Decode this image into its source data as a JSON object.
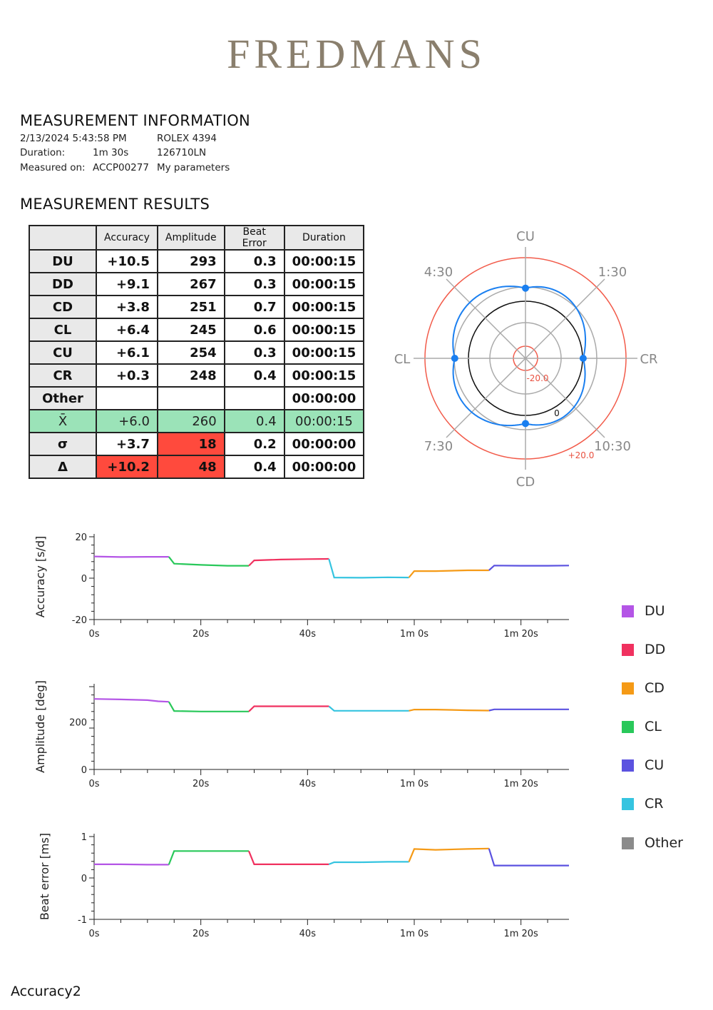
{
  "brand": "FREDMANS",
  "info": {
    "title": "MEASUREMENT INFORMATION",
    "datetime": "2/13/2024 5:43:58 PM",
    "watch": "ROLEX 4394",
    "duration_label": "Duration:",
    "duration_value": "1m 30s",
    "model": "126710LN",
    "measured_label": "Measured on:",
    "measured_value": "ACCP00277",
    "params": "My parameters"
  },
  "results": {
    "title": "MEASUREMENT RESULTS",
    "headers": [
      "",
      "Accuracy",
      "Amplitude",
      "Beat Error",
      "Duration"
    ],
    "rows": [
      {
        "label": "DU",
        "accuracy": "+10.5",
        "amplitude": "293",
        "beat_error": "0.3",
        "duration": "00:00:15"
      },
      {
        "label": "DD",
        "accuracy": "+9.1",
        "amplitude": "267",
        "beat_error": "0.3",
        "duration": "00:00:15"
      },
      {
        "label": "CD",
        "accuracy": "+3.8",
        "amplitude": "251",
        "beat_error": "0.7",
        "duration": "00:00:15"
      },
      {
        "label": "CL",
        "accuracy": "+6.4",
        "amplitude": "245",
        "beat_error": "0.6",
        "duration": "00:00:15"
      },
      {
        "label": "CU",
        "accuracy": "+6.1",
        "amplitude": "254",
        "beat_error": "0.3",
        "duration": "00:00:15"
      },
      {
        "label": "CR",
        "accuracy": "+0.3",
        "amplitude": "248",
        "beat_error": "0.4",
        "duration": "00:00:15"
      },
      {
        "label": "Other",
        "accuracy": "",
        "amplitude": "",
        "beat_error": "",
        "duration": "00:00:00"
      },
      {
        "label": "X̄",
        "accuracy": "+6.0",
        "amplitude": "260",
        "beat_error": "0.4",
        "duration": "00:00:15"
      },
      {
        "label": "σ",
        "accuracy": "+3.7",
        "amplitude": "18",
        "beat_error": "0.2",
        "duration": "00:00:00"
      },
      {
        "label": "Δ",
        "accuracy": "+10.2",
        "amplitude": "48",
        "beat_error": "0.4",
        "duration": "00:00:00"
      }
    ]
  },
  "colors": {
    "DU": "#b455e6",
    "DD": "#f0315f",
    "CD": "#f59a16",
    "CL": "#29c85a",
    "CU": "#5b52e0",
    "CR": "#35c4e0",
    "Other": "#8b8b8b",
    "mean_row": "#9be3b8",
    "alert": "#ff4a3d",
    "polar_curve": "#1a7ff0"
  },
  "chart_data": [
    {
      "type": "polar",
      "labels": {
        "CU": "CU",
        "CR": "CR",
        "CD": "CD",
        "CL": "CL",
        "d130": "1:30",
        "d430": "4:30",
        "d730": "7:30",
        "d1030": "10:30"
      },
      "r_inner_label": "-20.0",
      "r_outer_label": "+20.0",
      "r_zero_label": "0",
      "r_range": [
        -20,
        20
      ],
      "accuracy_by_position": {
        "CU": 6.1,
        "CR": 0.3,
        "CD": 3.8,
        "CL": 6.4
      }
    },
    {
      "type": "line",
      "ylabel": "Accuracy [s/d]",
      "ylim": [
        -20,
        20
      ],
      "yticks": [
        "20",
        "0",
        "-20"
      ],
      "xticks": [
        "0s",
        "20s",
        "40s",
        "1m 0s",
        "1m 20s"
      ],
      "xlim_s": [
        0,
        89
      ],
      "segments": [
        {
          "name": "DU",
          "points": [
            [
              0,
              10.5
            ],
            [
              5,
              10.2
            ],
            [
              10,
              10.3
            ],
            [
              14,
              10.3
            ]
          ]
        },
        {
          "name": "CL",
          "points": [
            [
              15,
              7
            ],
            [
              20,
              6.4
            ],
            [
              25,
              6.0
            ],
            [
              29,
              6.0
            ]
          ]
        },
        {
          "name": "DD",
          "points": [
            [
              30,
              8.6
            ],
            [
              35,
              9.0
            ],
            [
              40,
              9.2
            ],
            [
              44,
              9.3
            ]
          ]
        },
        {
          "name": "CR",
          "points": [
            [
              45,
              0.3
            ],
            [
              50,
              0.2
            ],
            [
              55,
              0.4
            ],
            [
              59,
              0.3
            ]
          ]
        },
        {
          "name": "CD",
          "points": [
            [
              60,
              3.4
            ],
            [
              64,
              3.4
            ],
            [
              70,
              3.8
            ],
            [
              74,
              3.8
            ]
          ]
        },
        {
          "name": "CU",
          "points": [
            [
              75,
              6.1
            ],
            [
              80,
              6.0
            ],
            [
              85,
              6.0
            ],
            [
              89,
              6.1
            ]
          ]
        }
      ]
    },
    {
      "type": "line",
      "ylabel": "Amplitude [deg]",
      "ylim": [
        0,
        350
      ],
      "yticks": [
        "200",
        "0"
      ],
      "xticks": [
        "0s",
        "20s",
        "40s",
        "1m 0s",
        "1m 20s"
      ],
      "xlim_s": [
        0,
        89
      ],
      "segments": [
        {
          "name": "DU",
          "points": [
            [
              0,
              298
            ],
            [
              5,
              296
            ],
            [
              10,
              293
            ],
            [
              12,
              288
            ],
            [
              14,
              286
            ]
          ]
        },
        {
          "name": "CL",
          "points": [
            [
              15,
              247
            ],
            [
              20,
              245
            ],
            [
              25,
              245
            ],
            [
              29,
              245
            ]
          ]
        },
        {
          "name": "DD",
          "points": [
            [
              30,
              267
            ],
            [
              35,
              267
            ],
            [
              40,
              267
            ],
            [
              44,
              267
            ]
          ]
        },
        {
          "name": "CR",
          "points": [
            [
              45,
              248
            ],
            [
              50,
              248
            ],
            [
              55,
              248
            ],
            [
              59,
              248
            ]
          ]
        },
        {
          "name": "CD",
          "points": [
            [
              60,
              253
            ],
            [
              64,
              253
            ],
            [
              70,
              250
            ],
            [
              74,
              249
            ]
          ]
        },
        {
          "name": "CU",
          "points": [
            [
              75,
              254
            ],
            [
              80,
              254
            ],
            [
              85,
              254
            ],
            [
              89,
              254
            ]
          ]
        }
      ]
    },
    {
      "type": "line",
      "ylabel": "Beat error [ms]",
      "ylim": [
        -1,
        1
      ],
      "yticks": [
        "1",
        "0",
        "-1"
      ],
      "xticks": [
        "0s",
        "20s",
        "40s",
        "1m 0s",
        "1m 20s"
      ],
      "xlim_s": [
        0,
        89
      ],
      "segments": [
        {
          "name": "DU",
          "points": [
            [
              0,
              0.33
            ],
            [
              5,
              0.33
            ],
            [
              10,
              0.32
            ],
            [
              14,
              0.32
            ]
          ]
        },
        {
          "name": "CL",
          "points": [
            [
              15,
              0.65
            ],
            [
              20,
              0.65
            ],
            [
              25,
              0.65
            ],
            [
              29,
              0.65
            ]
          ]
        },
        {
          "name": "DD",
          "points": [
            [
              30,
              0.33
            ],
            [
              35,
              0.33
            ],
            [
              40,
              0.33
            ],
            [
              44,
              0.33
            ]
          ]
        },
        {
          "name": "CR",
          "points": [
            [
              45,
              0.38
            ],
            [
              50,
              0.38
            ],
            [
              55,
              0.39
            ],
            [
              59,
              0.39
            ]
          ]
        },
        {
          "name": "CD",
          "points": [
            [
              60,
              0.7
            ],
            [
              64,
              0.68
            ],
            [
              70,
              0.7
            ],
            [
              74,
              0.71
            ]
          ]
        },
        {
          "name": "CU",
          "points": [
            [
              75,
              0.3
            ],
            [
              80,
              0.3
            ],
            [
              85,
              0.3
            ],
            [
              89,
              0.3
            ]
          ]
        }
      ]
    }
  ],
  "legend": [
    "DU",
    "DD",
    "CD",
    "CL",
    "CU",
    "CR",
    "Other"
  ],
  "footer": "Accuracy2"
}
